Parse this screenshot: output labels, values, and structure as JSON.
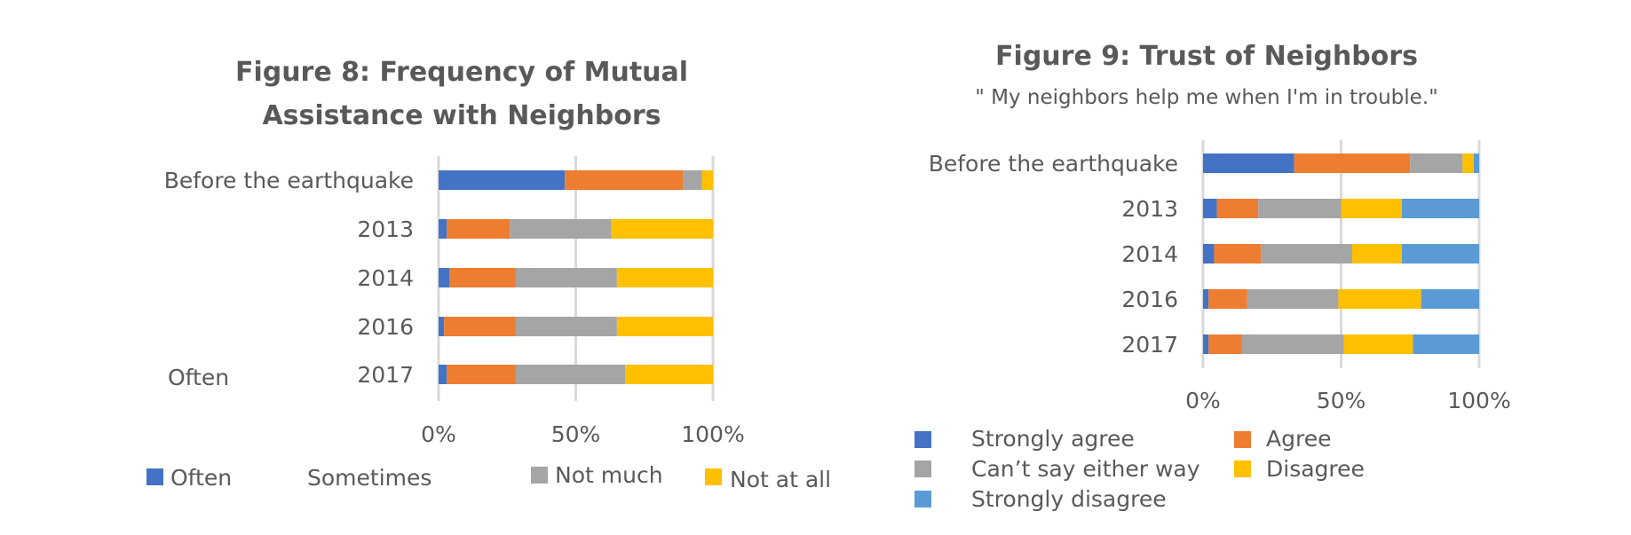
{
  "chart_data": [
    {
      "type": "bar",
      "orientation": "horizontal",
      "stacked": "percent",
      "title": "Figure 8: Frequency of Mutual Assistance with Neighbors",
      "title_lines": [
        "Figure 8: Frequency of Mutual",
        "Assistance with Neighbors"
      ],
      "categories": [
        "Before the earthquake",
        "2013",
        "2014",
        "2016",
        "2017"
      ],
      "series": [
        {
          "name": "Often",
          "color": "#4472C4",
          "values": [
            46,
            3,
            4,
            2,
            3
          ]
        },
        {
          "name": "Sometimes",
          "color": "#ED7D31",
          "values": [
            43,
            23,
            24,
            26,
            25
          ]
        },
        {
          "name": "Not much",
          "color": "#A5A5A5",
          "values": [
            7,
            37,
            37,
            37,
            40
          ]
        },
        {
          "name": "Not at all",
          "color": "#FFC000",
          "values": [
            4,
            37,
            35,
            35,
            32
          ]
        }
      ],
      "legend_labels": [
        "Often",
        "Sometimes",
        "Not much",
        "Not at all"
      ],
      "stray_label": "Often",
      "xticks": [
        "0%",
        "50%",
        "100%"
      ],
      "xlim": [
        0,
        100
      ],
      "grid": true,
      "legend": "bottom"
    },
    {
      "type": "bar",
      "orientation": "horizontal",
      "stacked": "percent",
      "title": "Figure 9: Trust of Neighbors",
      "subtitle": "\" My neighbors help me when I'm in trouble.\"",
      "categories": [
        "Before the earthquake",
        "2013",
        "2014",
        "2016",
        "2017"
      ],
      "series": [
        {
          "name": "Strongly agree",
          "color": "#4472C4",
          "values": [
            33,
            5,
            4,
            2,
            2
          ]
        },
        {
          "name": "Agree",
          "color": "#ED7D31",
          "values": [
            42,
            15,
            17,
            14,
            12
          ]
        },
        {
          "name": "Can’t say either way",
          "color": "#A5A5A5",
          "values": [
            19,
            30,
            33,
            33,
            37
          ]
        },
        {
          "name": "Disagree",
          "color": "#FFC000",
          "values": [
            4,
            22,
            18,
            30,
            25
          ]
        },
        {
          "name": "Strongly disagree",
          "color": "#5B9BD5",
          "values": [
            2,
            28,
            28,
            21,
            24
          ]
        }
      ],
      "xticks": [
        "0%",
        "50%",
        "100%"
      ],
      "xlim": [
        0,
        100
      ],
      "grid": true,
      "legend": "bottom"
    }
  ]
}
